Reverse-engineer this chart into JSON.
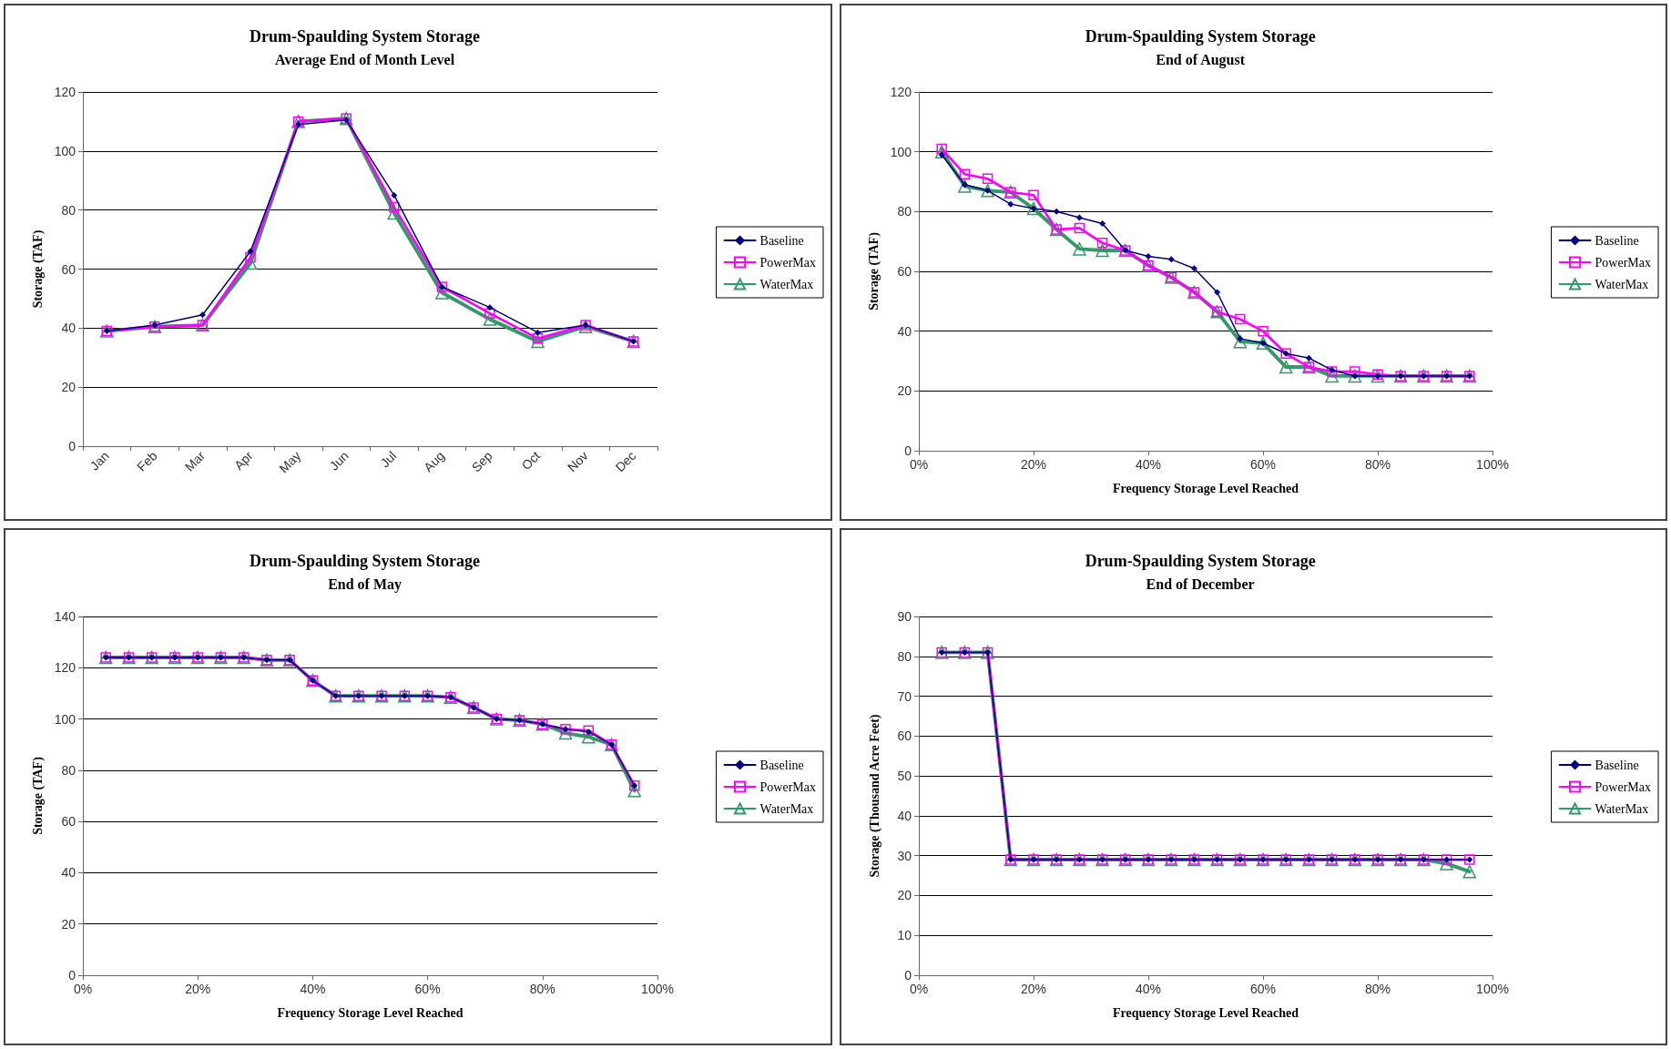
{
  "chart_data": [
    {
      "type": "line",
      "title": "Drum-Spaulding System Storage",
      "subtitle": "Average End of Month Level",
      "ylabel": "Storage (TAF)",
      "categories": [
        "Jan",
        "Feb",
        "Mar",
        "Apr",
        "May",
        "Jun",
        "Jul",
        "Aug",
        "Sep",
        "Oct",
        "Nov",
        "Dec"
      ],
      "ylim": [
        0,
        120
      ],
      "yticks": [
        0,
        20,
        40,
        60,
        80,
        100,
        120
      ],
      "grid": "y",
      "legend": "right",
      "series": [
        {
          "name": "Baseline",
          "color": "#000080",
          "marker": "diamond",
          "values": [
            39,
            41,
            44.5,
            66,
            109,
            110.5,
            85,
            54,
            47,
            38.5,
            41,
            35.5
          ]
        },
        {
          "name": "PowerMax",
          "color": "#ff00ff",
          "marker": "square",
          "values": [
            39,
            40.5,
            41,
            64,
            110,
            111,
            81,
            54,
            45,
            36.5,
            41,
            35.5
          ]
        },
        {
          "name": "WaterMax",
          "color": "#339966",
          "marker": "triangle",
          "values": [
            39,
            40.5,
            41,
            62,
            110,
            111,
            79,
            52,
            43,
            35.5,
            40.5,
            35.5
          ]
        }
      ]
    },
    {
      "type": "line",
      "title": "Drum-Spaulding System Storage",
      "subtitle": "End of August",
      "xlabel": "Frequency Storage Level Reached",
      "ylabel": "Storage (TAF)",
      "x": [
        4,
        8,
        12,
        16,
        20,
        24,
        28,
        32,
        36,
        40,
        44,
        48,
        52,
        56,
        60,
        64,
        68,
        72,
        76,
        80,
        84,
        88,
        92,
        96
      ],
      "xlim": [
        0,
        100
      ],
      "xticks": [
        {
          "value": 0,
          "label": "0%"
        },
        {
          "value": 20,
          "label": "20%"
        },
        {
          "value": 40,
          "label": "40%"
        },
        {
          "value": 60,
          "label": "60%"
        },
        {
          "value": 80,
          "label": "80%"
        },
        {
          "value": 100,
          "label": "100%"
        }
      ],
      "ylim": [
        0,
        120
      ],
      "yticks": [
        0,
        20,
        40,
        60,
        80,
        100,
        120
      ],
      "grid": "y",
      "legend": "right",
      "series": [
        {
          "name": "Baseline",
          "color": "#000080",
          "marker": "diamond",
          "values": [
            99,
            89,
            87,
            82.5,
            81,
            80,
            78,
            76,
            67,
            65,
            64,
            61,
            53,
            37.5,
            36,
            32.5,
            31,
            27,
            25,
            25,
            25,
            25,
            25,
            25
          ]
        },
        {
          "name": "PowerMax",
          "color": "#ff00ff",
          "marker": "square",
          "values": [
            101,
            92.5,
            91,
            86.5,
            85.5,
            74,
            74.5,
            69.5,
            67,
            62,
            58,
            53,
            46.5,
            44,
            40,
            32.5,
            28,
            26.5,
            26.5,
            25.5,
            25,
            25,
            25,
            25
          ]
        },
        {
          "name": "WaterMax",
          "color": "#339966",
          "marker": "triangle",
          "values": [
            100,
            88.5,
            87,
            86.5,
            81,
            74,
            67.5,
            67,
            67,
            62,
            58,
            53,
            46.5,
            36.5,
            36,
            28,
            28,
            25,
            25,
            25,
            25,
            25,
            25,
            25
          ]
        }
      ]
    },
    {
      "type": "line",
      "title": "Drum-Spaulding System Storage",
      "subtitle": "End of May",
      "xlabel": "Frequency Storage Level Reached",
      "ylabel": "Storage (TAF)",
      "x": [
        4,
        8,
        12,
        16,
        20,
        24,
        28,
        32,
        36,
        40,
        44,
        48,
        52,
        56,
        60,
        64,
        68,
        72,
        76,
        80,
        84,
        88,
        92,
        96
      ],
      "xlim": [
        0,
        100
      ],
      "xticks": [
        {
          "value": 0,
          "label": "0%"
        },
        {
          "value": 20,
          "label": "20%"
        },
        {
          "value": 40,
          "label": "40%"
        },
        {
          "value": 60,
          "label": "60%"
        },
        {
          "value": 80,
          "label": "80%"
        },
        {
          "value": 100,
          "label": "100%"
        }
      ],
      "ylim": [
        0,
        140
      ],
      "yticks": [
        0,
        20,
        40,
        60,
        80,
        100,
        120,
        140
      ],
      "grid": "y",
      "legend": "right",
      "series": [
        {
          "name": "Baseline",
          "color": "#000080",
          "marker": "diamond",
          "values": [
            124,
            124,
            124,
            124,
            124,
            124,
            124,
            123,
            123,
            115,
            109,
            109,
            109,
            109,
            109,
            108.5,
            104.5,
            100,
            99.5,
            98,
            96,
            95,
            90,
            74
          ]
        },
        {
          "name": "PowerMax",
          "color": "#ff00ff",
          "marker": "square",
          "values": [
            124,
            124,
            124,
            124,
            124,
            124,
            124,
            123,
            123,
            115,
            109,
            109,
            109,
            109,
            109,
            108.5,
            104.5,
            100,
            99.5,
            98,
            96,
            95.5,
            90,
            74
          ]
        },
        {
          "name": "WaterMax",
          "color": "#339966",
          "marker": "triangle",
          "values": [
            124,
            124,
            124,
            124,
            124,
            124,
            124,
            123,
            123,
            115,
            109,
            109,
            109,
            109,
            109,
            108.5,
            104.5,
            100,
            99.5,
            98,
            94.5,
            93,
            90,
            72
          ]
        }
      ]
    },
    {
      "type": "line",
      "title": "Drum-Spaulding System Storage",
      "subtitle": "End of December",
      "xlabel": "Frequency Storage Level Reached",
      "ylabel": "Storage (Thousand Acre Feet)",
      "x": [
        4,
        8,
        12,
        16,
        20,
        24,
        28,
        32,
        36,
        40,
        44,
        48,
        52,
        56,
        60,
        64,
        68,
        72,
        76,
        80,
        84,
        88,
        92,
        96
      ],
      "xlim": [
        0,
        100
      ],
      "xticks": [
        {
          "value": 0,
          "label": "0%"
        },
        {
          "value": 20,
          "label": "20%"
        },
        {
          "value": 40,
          "label": "40%"
        },
        {
          "value": 60,
          "label": "60%"
        },
        {
          "value": 80,
          "label": "80%"
        },
        {
          "value": 100,
          "label": "100%"
        }
      ],
      "ylim": [
        0,
        90
      ],
      "yticks": [
        0,
        10,
        20,
        30,
        40,
        50,
        60,
        70,
        80,
        90
      ],
      "grid": "y",
      "legend": "right",
      "series": [
        {
          "name": "Baseline",
          "color": "#000080",
          "marker": "diamond",
          "values": [
            81,
            81,
            81,
            29,
            29,
            29,
            29,
            29,
            29,
            29,
            29,
            29,
            29,
            29,
            29,
            29,
            29,
            29,
            29,
            29,
            29,
            29,
            29,
            29
          ]
        },
        {
          "name": "PowerMax",
          "color": "#ff00ff",
          "marker": "square",
          "values": [
            81,
            81,
            81,
            29,
            29,
            29,
            29,
            29,
            29,
            29,
            29,
            29,
            29,
            29,
            29,
            29,
            29,
            29,
            29,
            29,
            29,
            29,
            29,
            29
          ]
        },
        {
          "name": "WaterMax",
          "color": "#339966",
          "marker": "triangle",
          "values": [
            81,
            81,
            81,
            29,
            29,
            29,
            29,
            29,
            29,
            29,
            29,
            29,
            29,
            29,
            29,
            29,
            29,
            29,
            29,
            29,
            29,
            29,
            28,
            26
          ]
        }
      ]
    }
  ]
}
